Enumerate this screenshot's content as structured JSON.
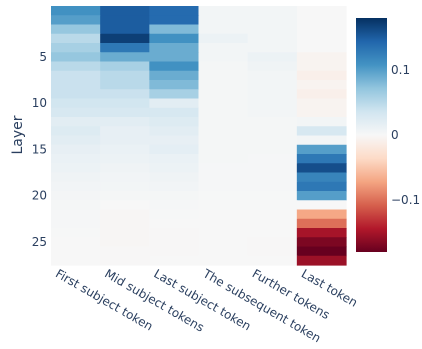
{
  "chart_data": {
    "type": "heatmap",
    "title": "",
    "xlabel": "",
    "ylabel": "Layer",
    "categories": [
      "First subject token",
      "Mid subject tokens",
      "Last subject token",
      "The subsequent token",
      "Further tokens",
      "Last token"
    ],
    "rows": [
      0,
      1,
      2,
      3,
      4,
      5,
      6,
      7,
      8,
      9,
      10,
      11,
      12,
      13,
      14,
      15,
      16,
      17,
      18,
      19,
      20,
      21,
      22,
      23,
      24,
      25,
      26,
      27
    ],
    "ytick_values": [
      5,
      10,
      15,
      20,
      25
    ],
    "values": [
      [
        0.11,
        0.15,
        0.14,
        0.005,
        0.005,
        0.0
      ],
      [
        0.1,
        0.15,
        0.14,
        0.005,
        0.005,
        0.0
      ],
      [
        0.07,
        0.15,
        0.08,
        0.005,
        0.005,
        0.0
      ],
      [
        0.05,
        0.17,
        0.11,
        0.01,
        0.005,
        0.0
      ],
      [
        0.06,
        0.13,
        0.09,
        0.005,
        0.005,
        0.0
      ],
      [
        0.07,
        0.09,
        0.09,
        0.005,
        0.01,
        -0.005
      ],
      [
        0.05,
        0.06,
        0.11,
        0.003,
        0.008,
        -0.005
      ],
      [
        0.04,
        0.05,
        0.09,
        0.003,
        0.005,
        -0.01
      ],
      [
        0.04,
        0.05,
        0.08,
        0.003,
        0.005,
        -0.005
      ],
      [
        0.04,
        0.04,
        0.06,
        0.003,
        0.005,
        -0.01
      ],
      [
        0.035,
        0.035,
        0.02,
        0.003,
        0.005,
        -0.005
      ],
      [
        0.03,
        0.03,
        0.03,
        0.003,
        0.005,
        -0.005
      ],
      [
        0.02,
        0.02,
        0.025,
        0.003,
        0.003,
        0.005
      ],
      [
        0.025,
        0.015,
        0.02,
        0.003,
        0.003,
        0.03
      ],
      [
        0.02,
        0.015,
        0.015,
        0.003,
        0.003,
        0.005
      ],
      [
        0.015,
        0.012,
        0.018,
        0.003,
        0.003,
        0.1
      ],
      [
        0.012,
        0.01,
        0.012,
        0.003,
        0.002,
        0.13
      ],
      [
        0.01,
        0.008,
        0.01,
        0.002,
        0.002,
        0.16
      ],
      [
        0.008,
        0.006,
        0.008,
        0.002,
        0.002,
        0.12
      ],
      [
        0.006,
        0.005,
        0.006,
        0.002,
        0.002,
        0.13
      ],
      [
        0.004,
        0.003,
        0.003,
        0.001,
        0.001,
        0.1
      ],
      [
        0.003,
        0.0,
        0.002,
        0.001,
        0.001,
        0.0
      ],
      [
        0.002,
        -0.002,
        0.001,
        0.0,
        0.0,
        -0.07
      ],
      [
        0.002,
        -0.002,
        0.0,
        0.0,
        0.0,
        -0.1
      ],
      [
        0.001,
        -0.002,
        -0.001,
        0.0,
        0.0,
        -0.15
      ],
      [
        0.0,
        -0.002,
        -0.001,
        0.0,
        -0.001,
        -0.17
      ],
      [
        0.0,
        -0.001,
        -0.001,
        0.0,
        -0.001,
        -0.18
      ],
      [
        0.0,
        -0.001,
        0.0,
        0.0,
        0.0,
        -0.155
      ]
    ],
    "zlim": [
      -0.18,
      0.18
    ],
    "colorscale": [
      "#67001f",
      "#b2182b",
      "#d6604d",
      "#f4a582",
      "#fddbc7",
      "#f7f7f7",
      "#d1e5f0",
      "#92c5de",
      "#4393c3",
      "#2166ac",
      "#053061"
    ],
    "colorbar_ticks": [
      0.1,
      0,
      -0.1
    ],
    "colorbar_tick_labels": [
      "0.1",
      "0",
      "−0.1"
    ],
    "grid": false,
    "legend": "colorbar right"
  }
}
